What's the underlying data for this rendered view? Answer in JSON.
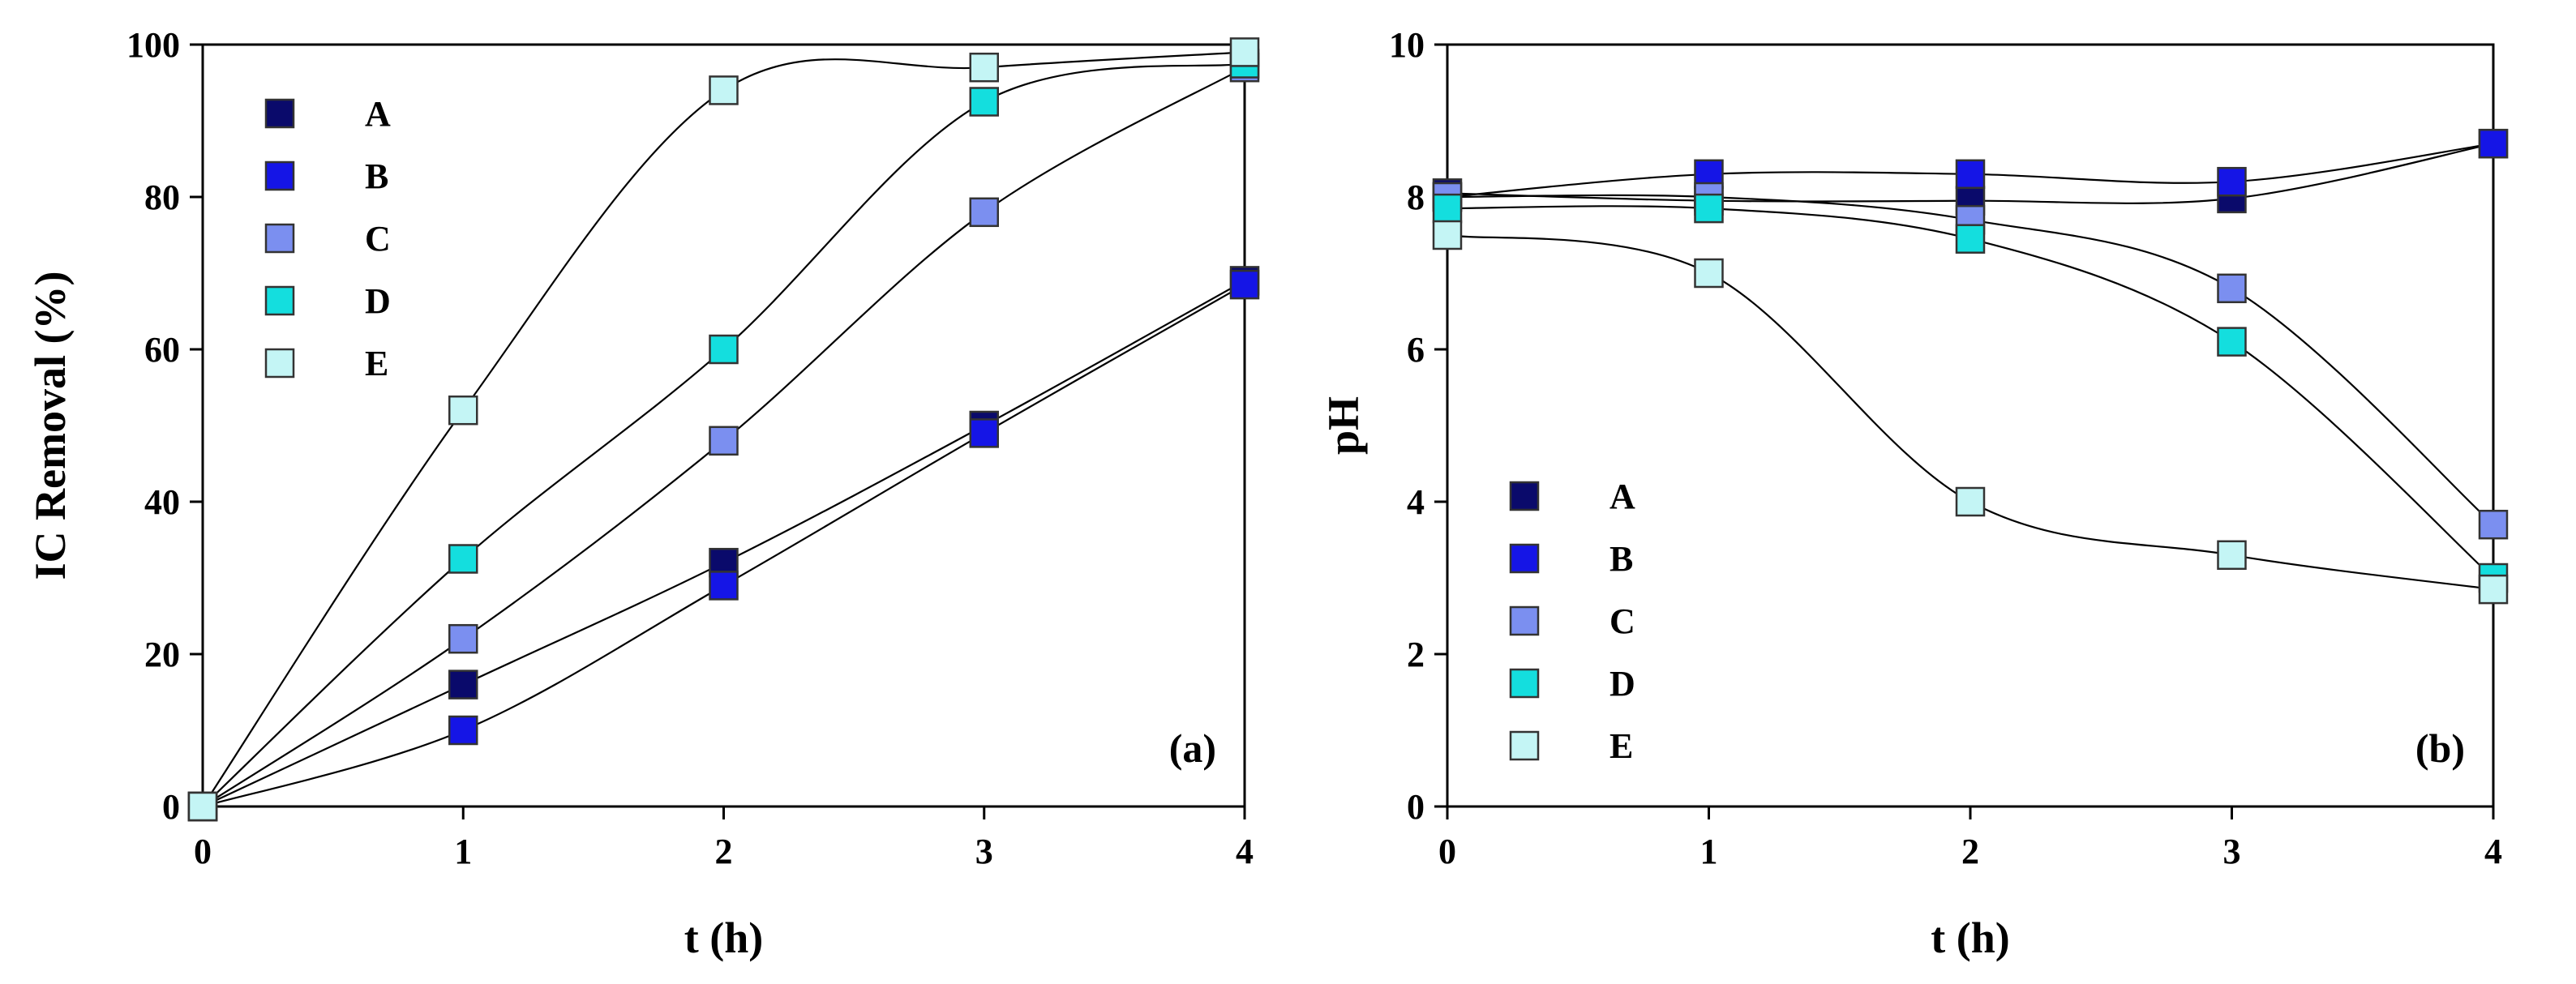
{
  "chart_data": [
    {
      "type": "line",
      "panel_label": "(a)",
      "xlabel": "t (h)",
      "ylabel": "IC Removal (%)",
      "x": [
        0,
        1,
        2,
        3,
        4
      ],
      "xlim": [
        0,
        4
      ],
      "ylim": [
        0,
        100
      ],
      "xticks": [
        "0",
        "1",
        "2",
        "3",
        "4"
      ],
      "yticks": [
        "0",
        "20",
        "40",
        "60",
        "80",
        "100"
      ],
      "grid": false,
      "legend_position": "top-left",
      "series": [
        {
          "name": "A",
          "color": "#0a0a6b",
          "values": [
            0,
            16,
            32,
            50,
            69
          ]
        },
        {
          "name": "B",
          "color": "#1515e6",
          "values": [
            0,
            10,
            29,
            49,
            68.5
          ]
        },
        {
          "name": "C",
          "color": "#7b8ff0",
          "values": [
            0,
            22,
            48,
            78,
            97
          ]
        },
        {
          "name": "D",
          "color": "#14dede",
          "values": [
            0,
            32.5,
            60,
            92.5,
            97.5
          ]
        },
        {
          "name": "E",
          "color": "#c4f5f5",
          "values": [
            0,
            52,
            94,
            97,
            99
          ]
        }
      ]
    },
    {
      "type": "line",
      "panel_label": "(b)",
      "xlabel": "t (h)",
      "ylabel": "pH",
      "x": [
        0,
        1,
        2,
        3,
        4
      ],
      "xlim": [
        0,
        4
      ],
      "ylim": [
        0,
        10
      ],
      "xticks": [
        "0",
        "1",
        "2",
        "3",
        "4"
      ],
      "yticks": [
        "0",
        "2",
        "4",
        "6",
        "8",
        "10"
      ],
      "grid": false,
      "legend_position": "bottom-left",
      "series": [
        {
          "name": "A",
          "color": "#0a0a6b",
          "values": [
            8.05,
            7.95,
            7.95,
            7.98,
            8.7
          ]
        },
        {
          "name": "B",
          "color": "#1515e6",
          "values": [
            8.0,
            8.3,
            8.3,
            8.2,
            8.7
          ]
        },
        {
          "name": "C",
          "color": "#7b8ff0",
          "values": [
            8.0,
            8.0,
            7.7,
            6.8,
            3.7
          ]
        },
        {
          "name": "D",
          "color": "#14dede",
          "values": [
            7.85,
            7.85,
            7.45,
            6.1,
            3.0
          ]
        },
        {
          "name": "E",
          "color": "#c4f5f5",
          "values": [
            7.5,
            7.0,
            4.0,
            3.3,
            2.85
          ]
        }
      ]
    }
  ]
}
